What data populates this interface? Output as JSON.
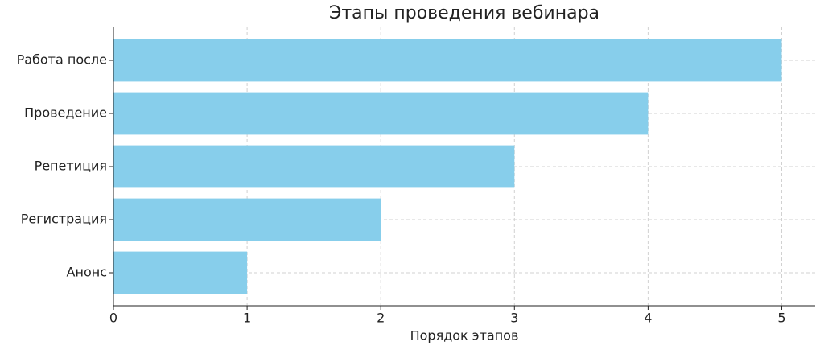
{
  "chart_data": {
    "type": "barh",
    "title": "Этапы проведения вебинара",
    "xlabel": "Порядок этапов",
    "categories": [
      "Анонс",
      "Регистрация",
      "Репетиция",
      "Проведение",
      "Работа после"
    ],
    "values": [
      1,
      2,
      3,
      4,
      5
    ],
    "color": "#87ceeb",
    "xlim": [
      0,
      5.25
    ],
    "xticks": [
      0,
      1,
      2,
      3,
      4,
      5
    ],
    "grid": true
  }
}
